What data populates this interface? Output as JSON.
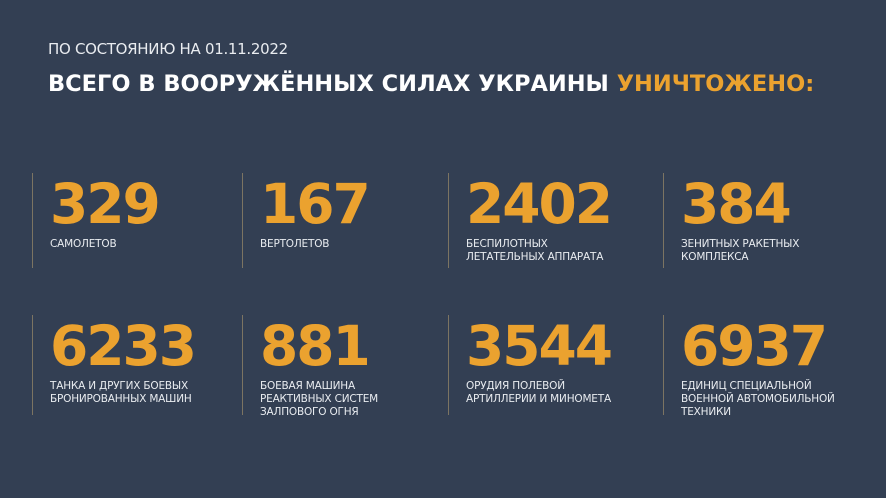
{
  "header": {
    "date_line": "ПО СОСТОЯНИЮ НА 01.11.2022",
    "title_main": "ВСЕГО В ВООРУЖЁННЫХ СИЛАХ УКРАИНЫ ",
    "title_highlight": "УНИЧТОЖЕНО:"
  },
  "colors": {
    "background": "#333f53",
    "accent": "#eba22f",
    "text": "#ffffff"
  },
  "stats": [
    {
      "value": "329",
      "label": "САМОЛЕТОВ"
    },
    {
      "value": "167",
      "label": "ВЕРТОЛЕТОВ"
    },
    {
      "value": "2402",
      "label": "БЕСПИЛОТНЫХ\nЛЕТАТЕЛЬНЫХ АППАРАТА"
    },
    {
      "value": "384",
      "label": "ЗЕНИТНЫХ РАКЕТНЫХ\nКОМПЛЕКСА"
    },
    {
      "value": "6233",
      "label": "ТАНКА И ДРУГИХ БОЕВЫХ\nБРОНИРОВАННЫХ МАШИН"
    },
    {
      "value": "881",
      "label": "БОЕВАЯ МАШИНА\nРЕАКТИВНЫХ СИСТЕМ\nЗАЛПОВОГО ОГНЯ"
    },
    {
      "value": "3544",
      "label": "ОРУДИЯ ПОЛЕВОЙ\nАРТИЛЛЕРИИ И МИНОМЕТА"
    },
    {
      "value": "6937",
      "label": "ЕДИНИЦ СПЕЦИАЛЬНОЙ\nВОЕННОЙ АВТОМОБИЛЬНОЙ\nТЕХНИКИ"
    }
  ]
}
